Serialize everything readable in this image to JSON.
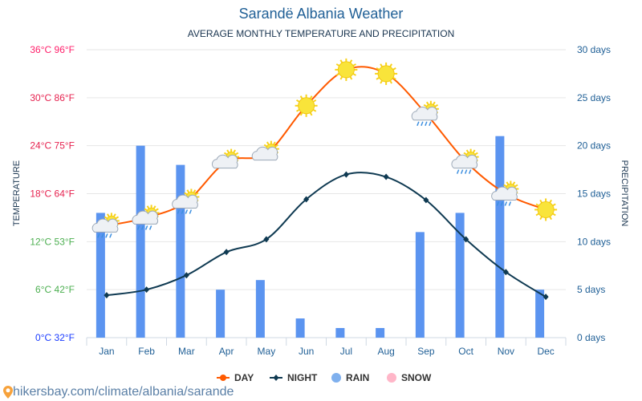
{
  "chart_data": {
    "type": "bar+line",
    "title": "Sarandë Albania Weather",
    "subtitle": "AVERAGE MONTHLY TEMPERATURE AND PRECIPITATION",
    "categories": [
      "Jan",
      "Feb",
      "Mar",
      "Apr",
      "May",
      "Jun",
      "Jul",
      "Aug",
      "Sep",
      "Oct",
      "Nov",
      "Dec"
    ],
    "ylabel_left": "TEMPERATURE",
    "ylabel_right": "PRECIPITATION",
    "left_ticks": [
      {
        "value": 36,
        "label": "36°C 96°F",
        "color": "#ff1f6a"
      },
      {
        "value": 30,
        "label": "30°C 86°F",
        "color": "#e6224f"
      },
      {
        "value": 24,
        "label": "24°C 75°F",
        "color": "#e6224f"
      },
      {
        "value": 18,
        "label": "18°C 64°F",
        "color": "#e6224f"
      },
      {
        "value": 12,
        "label": "12°C 53°F",
        "color": "#4caf50"
      },
      {
        "value": 6,
        "label": "6°C 42°F",
        "color": "#4caf50"
      },
      {
        "value": 0,
        "label": "0°C 32°F",
        "color": "#1a3bff"
      }
    ],
    "right_ticks": [
      {
        "value": 30,
        "label": "30 days"
      },
      {
        "value": 25,
        "label": "25 days"
      },
      {
        "value": 20,
        "label": "20 days"
      },
      {
        "value": 15,
        "label": "15 days"
      },
      {
        "value": 10,
        "label": "10 days"
      },
      {
        "value": 5,
        "label": "5 days"
      },
      {
        "value": 0,
        "label": "0 days"
      }
    ],
    "ylim_left": [
      0,
      36
    ],
    "ylim_right": [
      0,
      30
    ],
    "grid": true,
    "legend_position": "bottom",
    "series": [
      {
        "name": "DAY",
        "type": "line",
        "color": "#ff5a00",
        "unit": "°C",
        "values": [
          14,
          15,
          17,
          22,
          23,
          29,
          33.5,
          33,
          28,
          22,
          18,
          16
        ]
      },
      {
        "name": "NIGHT",
        "type": "line",
        "color": "#0f3a52",
        "unit": "°C",
        "values": [
          5.3,
          6,
          7.8,
          10.7,
          12.3,
          17.3,
          20.4,
          20.1,
          17.2,
          12.3,
          8.2,
          5.1
        ]
      },
      {
        "name": "RAIN",
        "type": "bar",
        "color": "#5b94f0",
        "legend_color": "#7fb0ee",
        "unit": "days",
        "values": [
          13,
          20,
          18,
          5,
          6,
          2,
          1,
          1,
          11,
          13,
          21,
          5
        ]
      },
      {
        "name": "SNOW",
        "type": "bar",
        "color": "#ffb6c8",
        "unit": "days",
        "values": [
          0,
          0,
          0,
          0,
          0,
          0,
          0,
          0,
          0,
          0,
          0,
          0
        ]
      }
    ],
    "weather_icons": [
      "cloud-rain-sun",
      "cloud-rain",
      "cloud-rain-sun",
      "cloud-sun",
      "cloud-sun",
      "sun",
      "sun",
      "sun",
      "cloud-rain-sun",
      "cloud-rain-sun",
      "cloud-rain-sun",
      "sun"
    ]
  },
  "footer": {
    "link": "hikersbay.com/climate/albania/sarande",
    "icon": "location-pin-icon"
  }
}
